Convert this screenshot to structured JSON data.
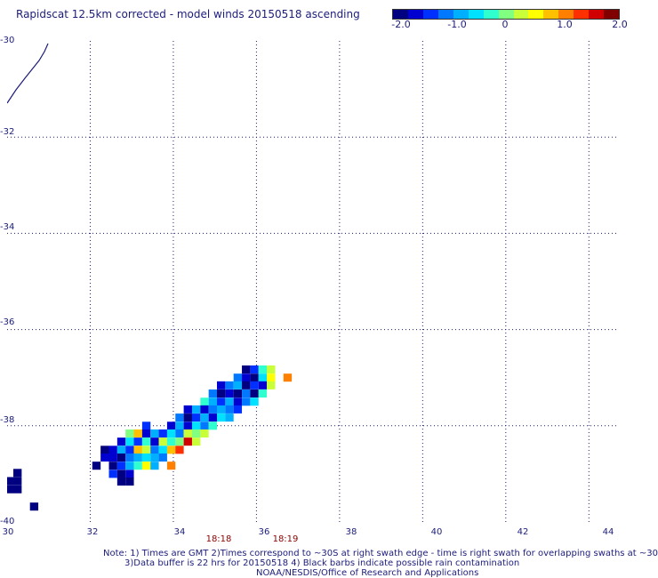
{
  "title": "Rapidscat 12.5km corrected - model winds 20150518 ascending",
  "scale": {
    "labels": [
      "-2.0",
      "-1.0",
      "0",
      "1.0",
      "2.0"
    ],
    "values": [
      -2.0,
      -1.0,
      0,
      1.0,
      2.0
    ],
    "colors": [
      "#000080",
      "#0000d0",
      "#0030ff",
      "#0078ff",
      "#00b0ff",
      "#00e0ff",
      "#30ffd0",
      "#80ff80",
      "#c8ff38",
      "#ffff00",
      "#ffc000",
      "#ff8000",
      "#ff3000",
      "#d00000",
      "#800000"
    ]
  },
  "map": {
    "lat_labels": [
      "-30",
      "-32",
      "-34",
      "-36",
      "-38",
      "-40"
    ],
    "lon_labels": [
      "30",
      "32",
      "34",
      "36",
      "38",
      "40",
      "42",
      "44"
    ],
    "lat_range": [
      -30,
      -40
    ],
    "lon_range": [
      30,
      44.7
    ],
    "grid": true,
    "coastline_color": "#1c1c7a",
    "times": [
      "18:18",
      "18:19"
    ]
  },
  "notes": {
    "line1": "Note: 1) Times are GMT 2)Times correspond to ~30S at right swath edge - time is right swath for overlapping swaths at ~30S",
    "line2": "3)Data buffer is 22 hrs for 20150518 4) Black barbs indicate possible rain contamination",
    "line3": "NOAA/NESDIS/Office of Research and Applications"
  },
  "wind_cells": [
    {
      "lon": 35.75,
      "lat": -36.83,
      "v": -2.0
    },
    {
      "lon": 35.95,
      "lat": -36.83,
      "v": -1.4
    },
    {
      "lon": 36.15,
      "lat": -36.83,
      "v": -0.3
    },
    {
      "lon": 36.35,
      "lat": -36.83,
      "v": 0.2
    },
    {
      "lon": 35.55,
      "lat": -37.0,
      "v": -1.2
    },
    {
      "lon": 35.75,
      "lat": -37.0,
      "v": -1.6
    },
    {
      "lon": 35.95,
      "lat": -37.0,
      "v": -1.8
    },
    {
      "lon": 36.15,
      "lat": -37.0,
      "v": -0.5
    },
    {
      "lon": 36.35,
      "lat": -37.0,
      "v": 0.6
    },
    {
      "lon": 36.75,
      "lat": -37.0,
      "v": 1.0
    },
    {
      "lon": 35.15,
      "lat": -37.16,
      "v": -1.5
    },
    {
      "lon": 35.35,
      "lat": -37.16,
      "v": -1.1
    },
    {
      "lon": 35.55,
      "lat": -37.16,
      "v": -0.8
    },
    {
      "lon": 35.75,
      "lat": -37.16,
      "v": -2.0
    },
    {
      "lon": 35.95,
      "lat": -37.16,
      "v": -1.3
    },
    {
      "lon": 36.15,
      "lat": -37.16,
      "v": -1.6
    },
    {
      "lon": 36.35,
      "lat": -37.16,
      "v": 0.3
    },
    {
      "lon": 34.95,
      "lat": -37.33,
      "v": -1.2
    },
    {
      "lon": 35.15,
      "lat": -37.33,
      "v": -2.0
    },
    {
      "lon": 35.35,
      "lat": -37.33,
      "v": -1.5
    },
    {
      "lon": 35.55,
      "lat": -37.33,
      "v": -2.0
    },
    {
      "lon": 35.75,
      "lat": -37.33,
      "v": -1.1
    },
    {
      "lon": 35.95,
      "lat": -37.33,
      "v": -2.0
    },
    {
      "lon": 36.15,
      "lat": -37.33,
      "v": -0.3
    },
    {
      "lon": 34.75,
      "lat": -37.5,
      "v": -0.4
    },
    {
      "lon": 34.95,
      "lat": -37.5,
      "v": -0.9
    },
    {
      "lon": 35.15,
      "lat": -37.5,
      "v": -1.4
    },
    {
      "lon": 35.35,
      "lat": -37.5,
      "v": -0.8
    },
    {
      "lon": 35.55,
      "lat": -37.5,
      "v": -1.5
    },
    {
      "lon": 35.75,
      "lat": -37.5,
      "v": -1.0
    },
    {
      "lon": 35.95,
      "lat": -37.5,
      "v": -0.6
    },
    {
      "lon": 34.35,
      "lat": -37.66,
      "v": -1.7
    },
    {
      "lon": 34.55,
      "lat": -37.66,
      "v": -0.9
    },
    {
      "lon": 34.75,
      "lat": -37.66,
      "v": -1.6
    },
    {
      "lon": 34.95,
      "lat": -37.66,
      "v": -1.2
    },
    {
      "lon": 35.15,
      "lat": -37.66,
      "v": -0.7
    },
    {
      "lon": 35.35,
      "lat": -37.66,
      "v": -1.1
    },
    {
      "lon": 35.55,
      "lat": -37.66,
      "v": -1.4
    },
    {
      "lon": 34.15,
      "lat": -37.83,
      "v": -1.1
    },
    {
      "lon": 34.35,
      "lat": -37.83,
      "v": -2.0
    },
    {
      "lon": 34.55,
      "lat": -37.83,
      "v": -1.3
    },
    {
      "lon": 34.75,
      "lat": -37.83,
      "v": -0.7
    },
    {
      "lon": 34.95,
      "lat": -37.83,
      "v": -1.6
    },
    {
      "lon": 35.15,
      "lat": -37.83,
      "v": -0.6
    },
    {
      "lon": 35.35,
      "lat": -37.83,
      "v": -0.9
    },
    {
      "lon": 33.35,
      "lat": -38.0,
      "v": -1.4
    },
    {
      "lon": 33.95,
      "lat": -38.0,
      "v": -1.5
    },
    {
      "lon": 34.15,
      "lat": -38.0,
      "v": -0.8
    },
    {
      "lon": 34.35,
      "lat": -38.0,
      "v": -1.6
    },
    {
      "lon": 34.55,
      "lat": -38.0,
      "v": -0.5
    },
    {
      "lon": 34.75,
      "lat": -38.0,
      "v": -1.0
    },
    {
      "lon": 34.95,
      "lat": -38.0,
      "v": -0.4
    },
    {
      "lon": 32.95,
      "lat": -38.16,
      "v": 0.1
    },
    {
      "lon": 33.15,
      "lat": -38.16,
      "v": 0.8
    },
    {
      "lon": 33.35,
      "lat": -38.16,
      "v": -1.5
    },
    {
      "lon": 33.55,
      "lat": -38.16,
      "v": -0.8
    },
    {
      "lon": 33.75,
      "lat": -38.16,
      "v": -1.3
    },
    {
      "lon": 33.95,
      "lat": -38.16,
      "v": -0.5
    },
    {
      "lon": 34.15,
      "lat": -38.16,
      "v": -1.1
    },
    {
      "lon": 34.35,
      "lat": -38.16,
      "v": 0.2
    },
    {
      "lon": 34.55,
      "lat": -38.16,
      "v": 0.1
    },
    {
      "lon": 34.75,
      "lat": -38.16,
      "v": 0.2
    },
    {
      "lon": 32.75,
      "lat": -38.33,
      "v": -1.5
    },
    {
      "lon": 32.95,
      "lat": -38.33,
      "v": -0.6
    },
    {
      "lon": 33.15,
      "lat": -38.33,
      "v": -1.3
    },
    {
      "lon": 33.35,
      "lat": -38.33,
      "v": -0.2
    },
    {
      "lon": 33.55,
      "lat": -38.33,
      "v": -1.6
    },
    {
      "lon": 33.75,
      "lat": -38.33,
      "v": 0.3
    },
    {
      "lon": 33.95,
      "lat": -38.33,
      "v": -0.3
    },
    {
      "lon": 34.15,
      "lat": -38.33,
      "v": 0.1
    },
    {
      "lon": 34.35,
      "lat": -38.33,
      "v": 1.7
    },
    {
      "lon": 34.55,
      "lat": -38.33,
      "v": 0.3
    },
    {
      "lon": 32.35,
      "lat": -38.5,
      "v": -2.0
    },
    {
      "lon": 32.55,
      "lat": -38.5,
      "v": -1.6
    },
    {
      "lon": 32.75,
      "lat": -38.5,
      "v": -0.9
    },
    {
      "lon": 32.95,
      "lat": -38.5,
      "v": -1.3
    },
    {
      "lon": 33.15,
      "lat": -38.5,
      "v": 0.9
    },
    {
      "lon": 33.35,
      "lat": -38.5,
      "v": 0.2
    },
    {
      "lon": 33.55,
      "lat": -38.5,
      "v": -1.0
    },
    {
      "lon": 33.75,
      "lat": -38.5,
      "v": -0.6
    },
    {
      "lon": 33.95,
      "lat": -38.5,
      "v": 0.8
    },
    {
      "lon": 34.15,
      "lat": -38.5,
      "v": 1.3
    },
    {
      "lon": 32.35,
      "lat": -38.66,
      "v": -1.6
    },
    {
      "lon": 32.55,
      "lat": -38.66,
      "v": -1.5
    },
    {
      "lon": 32.75,
      "lat": -38.66,
      "v": -2.0
    },
    {
      "lon": 32.95,
      "lat": -38.66,
      "v": -1.0
    },
    {
      "lon": 33.15,
      "lat": -38.66,
      "v": -0.7
    },
    {
      "lon": 33.35,
      "lat": -38.66,
      "v": -0.6
    },
    {
      "lon": 33.55,
      "lat": -38.66,
      "v": -0.9
    },
    {
      "lon": 33.75,
      "lat": -38.66,
      "v": -1.1
    },
    {
      "lon": 32.15,
      "lat": -38.83,
      "v": -2.0
    },
    {
      "lon": 32.55,
      "lat": -38.83,
      "v": -2.0
    },
    {
      "lon": 32.75,
      "lat": -38.83,
      "v": -1.4
    },
    {
      "lon": 32.95,
      "lat": -38.83,
      "v": -0.7
    },
    {
      "lon": 33.15,
      "lat": -38.83,
      "v": -0.2
    },
    {
      "lon": 33.35,
      "lat": -38.83,
      "v": 0.4
    },
    {
      "lon": 33.55,
      "lat": -38.83,
      "v": -0.8
    },
    {
      "lon": 33.95,
      "lat": -38.83,
      "v": 1.0
    },
    {
      "lon": 32.55,
      "lat": -39.0,
      "v": -1.3
    },
    {
      "lon": 32.75,
      "lat": -39.0,
      "v": -1.8
    },
    {
      "lon": 32.95,
      "lat": -39.0,
      "v": -1.5
    },
    {
      "lon": 32.95,
      "lat": -39.16,
      "v": -2.0
    },
    {
      "lon": 32.75,
      "lat": -39.16,
      "v": -2.0
    },
    {
      "lon": 30.25,
      "lat": -38.98,
      "v": -2.0
    },
    {
      "lon": 30.05,
      "lat": -39.15,
      "v": -2.0
    },
    {
      "lon": 30.25,
      "lat": -39.15,
      "v": -2.0
    },
    {
      "lon": 30.05,
      "lat": -39.32,
      "v": -2.0
    },
    {
      "lon": 30.25,
      "lat": -39.32,
      "v": -1.9
    },
    {
      "lon": 30.65,
      "lat": -39.68,
      "v": -2.0
    }
  ]
}
